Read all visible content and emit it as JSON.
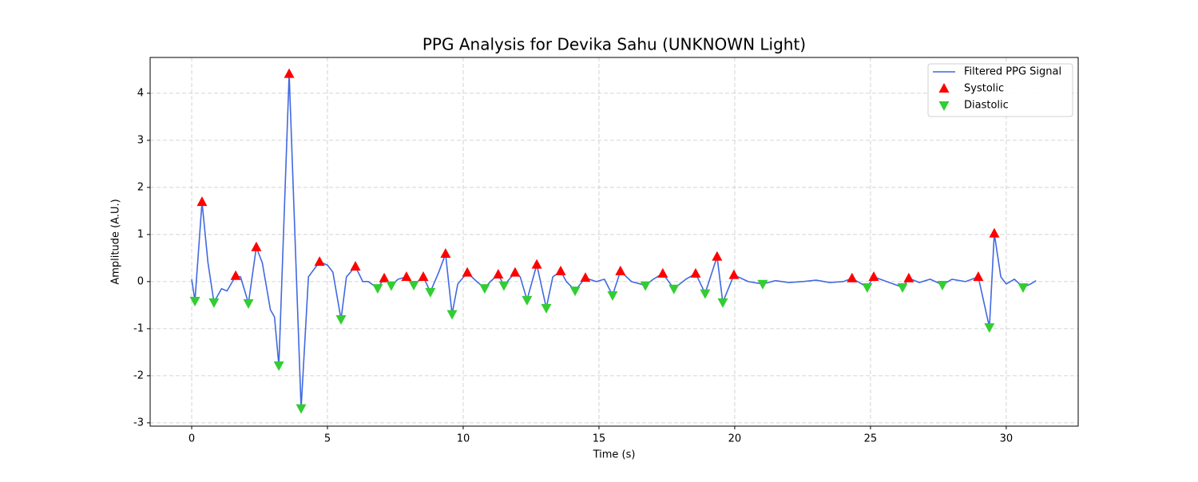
{
  "chart_data": {
    "type": "line",
    "title": "PPG Analysis for Devika Sahu (UNKNOWN Light)",
    "xlabel": "Time (s)",
    "ylabel": "Amplitude (A.U.)",
    "xlim": [
      -1.53,
      32.65
    ],
    "ylim": [
      -3.07,
      4.76
    ],
    "xticks": [
      0,
      5,
      10,
      15,
      20,
      25,
      30
    ],
    "yticks": [
      -3,
      -2,
      -1,
      0,
      1,
      2,
      3,
      4
    ],
    "grid": true,
    "legend": "upper right",
    "series": [
      {
        "name": "Filtered PPG Signal",
        "color": "#4169e1",
        "kind": "line",
        "x": [
          0,
          0.12,
          0.38,
          0.6,
          0.82,
          1.1,
          1.3,
          1.62,
          1.8,
          2.09,
          2.38,
          2.6,
          2.9,
          3.05,
          3.21,
          3.59,
          4.03,
          4.3,
          4.71,
          5.0,
          5.2,
          5.5,
          5.7,
          6.03,
          6.3,
          6.5,
          6.85,
          7.09,
          7.35,
          7.6,
          7.91,
          8.18,
          8.53,
          8.79,
          9.1,
          9.35,
          9.59,
          9.8,
          10.15,
          10.5,
          10.79,
          11.0,
          11.29,
          11.5,
          11.91,
          12.1,
          12.35,
          12.71,
          13.06,
          13.3,
          13.59,
          13.8,
          14.12,
          14.5,
          14.9,
          15.2,
          15.5,
          15.79,
          16.2,
          16.71,
          17.0,
          17.35,
          17.76,
          18.2,
          18.56,
          18.91,
          19.35,
          19.56,
          19.97,
          20.5,
          21.03,
          21.5,
          22.0,
          22.5,
          23.0,
          23.5,
          24.0,
          24.32,
          24.88,
          25.12,
          25.6,
          26.18,
          26.41,
          26.8,
          27.2,
          27.65,
          28.0,
          28.5,
          28.97,
          29.38,
          29.56,
          29.8,
          30.0,
          30.3,
          30.62,
          30.9,
          31.1
        ],
        "values": [
          0.05,
          -0.41,
          1.69,
          0.4,
          -0.44,
          -0.15,
          -0.2,
          0.12,
          0.1,
          -0.46,
          0.73,
          0.4,
          -0.6,
          -0.75,
          -1.78,
          4.41,
          -2.69,
          0.1,
          0.42,
          0.35,
          0.2,
          -0.8,
          0.1,
          0.32,
          0.0,
          0.0,
          -0.14,
          0.07,
          -0.08,
          0.05,
          0.1,
          -0.07,
          0.1,
          -0.22,
          0.2,
          0.59,
          -0.69,
          -0.05,
          0.19,
          0.0,
          -0.14,
          0.0,
          0.15,
          -0.08,
          0.19,
          0.1,
          -0.39,
          0.36,
          -0.56,
          0.1,
          0.22,
          0.0,
          -0.19,
          0.08,
          0.0,
          0.05,
          -0.29,
          0.22,
          0.0,
          -0.08,
          0.05,
          0.17,
          -0.15,
          0.05,
          0.17,
          -0.25,
          0.53,
          -0.44,
          0.14,
          0.0,
          -0.05,
          0.02,
          -0.02,
          0.0,
          0.03,
          -0.02,
          0.0,
          0.07,
          -0.12,
          0.1,
          0.0,
          -0.12,
          0.07,
          -0.02,
          0.05,
          -0.07,
          0.05,
          0.0,
          0.1,
          -0.97,
          1.02,
          0.1,
          -0.05,
          0.05,
          -0.12,
          -0.05,
          0.02
        ]
      },
      {
        "name": "Systolic",
        "color": "#ff0000",
        "kind": "scatter",
        "marker": "up",
        "x": [
          0.38,
          1.62,
          2.38,
          3.59,
          4.71,
          6.03,
          7.09,
          7.91,
          8.53,
          9.35,
          10.15,
          11.29,
          11.91,
          12.71,
          13.59,
          14.5,
          15.79,
          17.35,
          18.56,
          19.35,
          19.97,
          24.32,
          25.12,
          26.41,
          28.97,
          29.56
        ],
        "values": [
          1.69,
          0.12,
          0.73,
          4.41,
          0.42,
          0.32,
          0.07,
          0.1,
          0.1,
          0.59,
          0.19,
          0.15,
          0.19,
          0.36,
          0.22,
          0.08,
          0.22,
          0.17,
          0.17,
          0.53,
          0.14,
          0.07,
          0.1,
          0.07,
          0.1,
          1.02
        ]
      },
      {
        "name": "Diastolic",
        "color": "#32cd32",
        "kind": "scatter",
        "marker": "down",
        "x": [
          0.12,
          0.82,
          2.09,
          3.21,
          4.03,
          5.5,
          6.85,
          7.35,
          8.18,
          8.79,
          9.59,
          10.79,
          11.5,
          12.35,
          13.06,
          14.12,
          15.5,
          16.71,
          17.76,
          18.91,
          19.56,
          21.03,
          24.88,
          26.18,
          27.65,
          29.38,
          30.62
        ],
        "values": [
          -0.41,
          -0.44,
          -0.46,
          -1.78,
          -2.69,
          -0.8,
          -0.14,
          -0.08,
          -0.07,
          -0.22,
          -0.69,
          -0.14,
          -0.08,
          -0.39,
          -0.56,
          -0.19,
          -0.29,
          -0.08,
          -0.15,
          -0.25,
          -0.44,
          -0.05,
          -0.12,
          -0.12,
          -0.07,
          -0.97,
          -0.12
        ]
      }
    ]
  }
}
